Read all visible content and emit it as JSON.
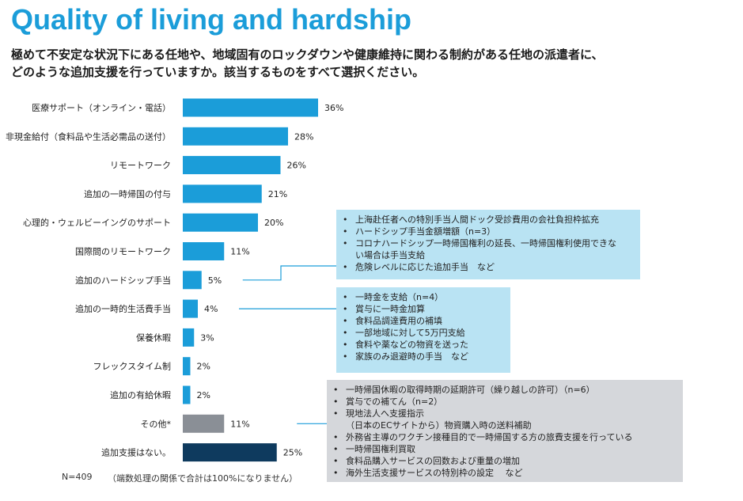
{
  "header": {
    "title": "Quality of living and hardship",
    "subtitle_line1": "極めて不安定な状況下にある任地や、地域固有のロックダウンや健康維持に関わる制約がある任地の派遣者に、",
    "subtitle_line2": "どのような追加支援を行っていますか。該当するものをすべて選択ください。"
  },
  "chart_data": {
    "type": "bar",
    "orientation": "horizontal",
    "categories": [
      "医療サポート（オンライン・電話）",
      "非現金給付（食料品や生活必需品の送付）",
      "リモートワーク",
      "追加の一時帰国の付与",
      "心理的・ウェルビーイングのサポート",
      "国際間のリモートワーク",
      "追加のハードシップ手当",
      "追加の一時的生活費手当",
      "保養休暇",
      "フレックスタイム制",
      "追加の有給休暇",
      "その他*",
      "追加支援はない。"
    ],
    "values": [
      36,
      28,
      26,
      21,
      20,
      11,
      5,
      4,
      3,
      2,
      2,
      11,
      25
    ],
    "value_labels": [
      "36%",
      "28%",
      "26%",
      "21%",
      "20%",
      "11%",
      "5%",
      "4%",
      "3%",
      "2%",
      "2%",
      "11%",
      "25%"
    ],
    "bar_colors": [
      "#1b9dd9",
      "#1b9dd9",
      "#1b9dd9",
      "#1b9dd9",
      "#1b9dd9",
      "#1b9dd9",
      "#1b9dd9",
      "#1b9dd9",
      "#1b9dd9",
      "#1b9dd9",
      "#1b9dd9",
      "#8a8f96",
      "#0e3a5e"
    ],
    "unit": "%",
    "xlim": [
      0,
      100
    ]
  },
  "footnote": {
    "n": "N=409",
    "rounding": "（端数処理の関係で合計は100%になりません）"
  },
  "callouts": {
    "hardship": {
      "items": [
        "上海赴任者への特別手当人間ドック受診費用の会社負担枠拡充",
        "ハードシップ手当金額増額（n=3）",
        "コロナハードシップ一時帰国権利の延長、一時帰国権利使用できな",
        "い場合は手当支給",
        "危険レベルに応じた追加手当　など"
      ]
    },
    "living": {
      "items": [
        "一時金を支給（n=4）",
        "賞与に一時金加算",
        "食料品調達費用の補填",
        "一部地域に対して5万円支給",
        "食料や薬などの物資を送った",
        "家族のみ退避時の手当　など"
      ]
    },
    "other": {
      "items": [
        "一時帰国休暇の取得時期の延期許可（繰り越しの許可）（n=6）",
        "賞与での補てん（n=2）",
        "現地法人へ支援指示",
        "（日本のECサイトから）物資購入時の送料補助",
        "外務省主導のワクチン接種目的で一時帰国する方の旅費支援を行っている",
        "一時帰国権利買取",
        "食料品購入サービスの回数および重量の増加",
        "海外生活支援サービスの特別枠の設定　 など"
      ]
    }
  },
  "colors": {
    "title": "#1b9dd9",
    "bar": "#1b9dd9",
    "bar_other": "#8a8f96",
    "bar_none": "#0e3a5e",
    "callout_blue": "#b9e3f3",
    "callout_gray": "#d5d7db",
    "connector": "#1b9dd9"
  }
}
